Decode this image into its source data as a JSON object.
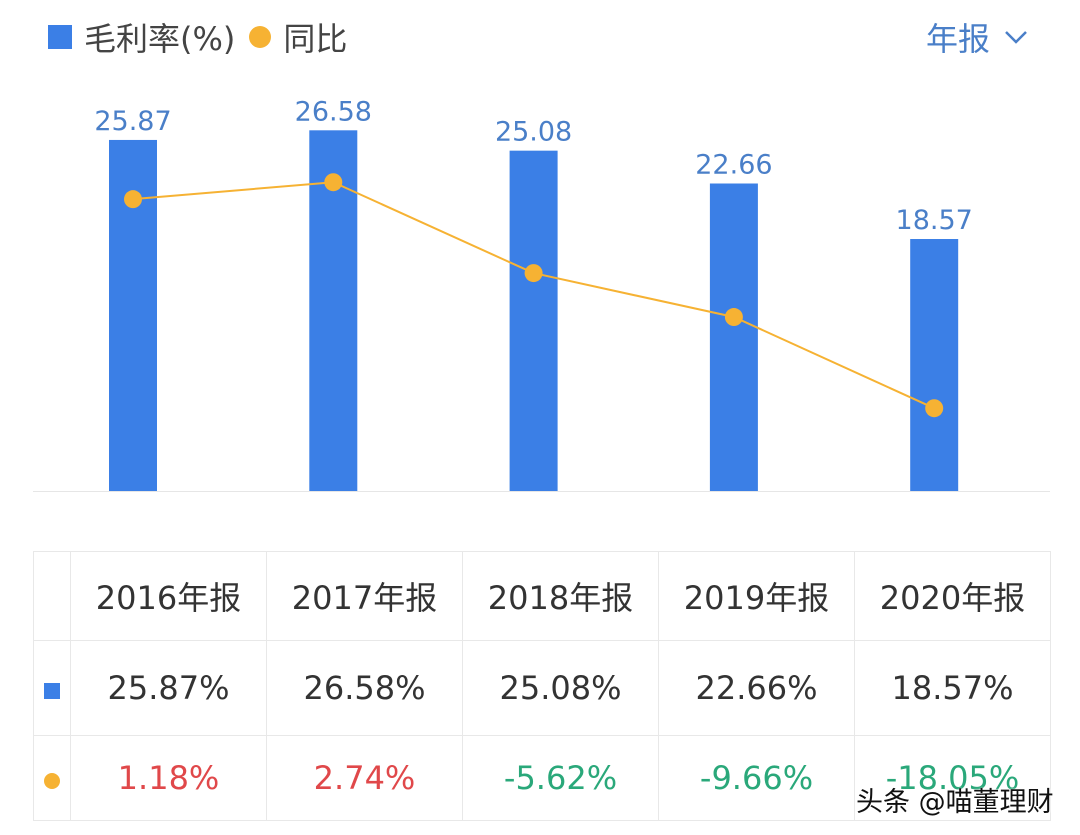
{
  "legend": {
    "bar_label": "毛利率(%)",
    "line_label": "同比"
  },
  "period_select": {
    "label": "年报",
    "icon": "chevron-down-icon"
  },
  "colors": {
    "bar": "#3b7fe6",
    "line": "#f6b233",
    "positive": "#e0484a",
    "negative": "#2aa87a",
    "label": "#4a7fc8"
  },
  "chart_data": {
    "type": "bar+line",
    "categories": [
      "2016年报",
      "2017年报",
      "2018年报",
      "2019年报",
      "2020年报"
    ],
    "series": [
      {
        "name": "毛利率(%)",
        "type": "bar",
        "values": [
          25.87,
          26.58,
          25.08,
          22.66,
          18.57
        ],
        "labels": [
          "25.87",
          "26.58",
          "25.08",
          "22.66",
          "18.57"
        ]
      },
      {
        "name": "同比",
        "type": "line",
        "values": [
          1.18,
          2.74,
          -5.62,
          -9.66,
          -18.05
        ]
      }
    ],
    "grid": false,
    "legend_position": "top-left"
  },
  "table": {
    "headers": [
      "2016年报",
      "2017年报",
      "2018年报",
      "2019年报",
      "2020年报"
    ],
    "margin_row": [
      "25.87%",
      "26.58%",
      "25.08%",
      "22.66%",
      "18.57%"
    ],
    "yoy_row": [
      "1.18%",
      "2.74%",
      "-5.62%",
      "-9.66%",
      "-18.05%"
    ]
  },
  "watermark": "头条 @喵董理财"
}
